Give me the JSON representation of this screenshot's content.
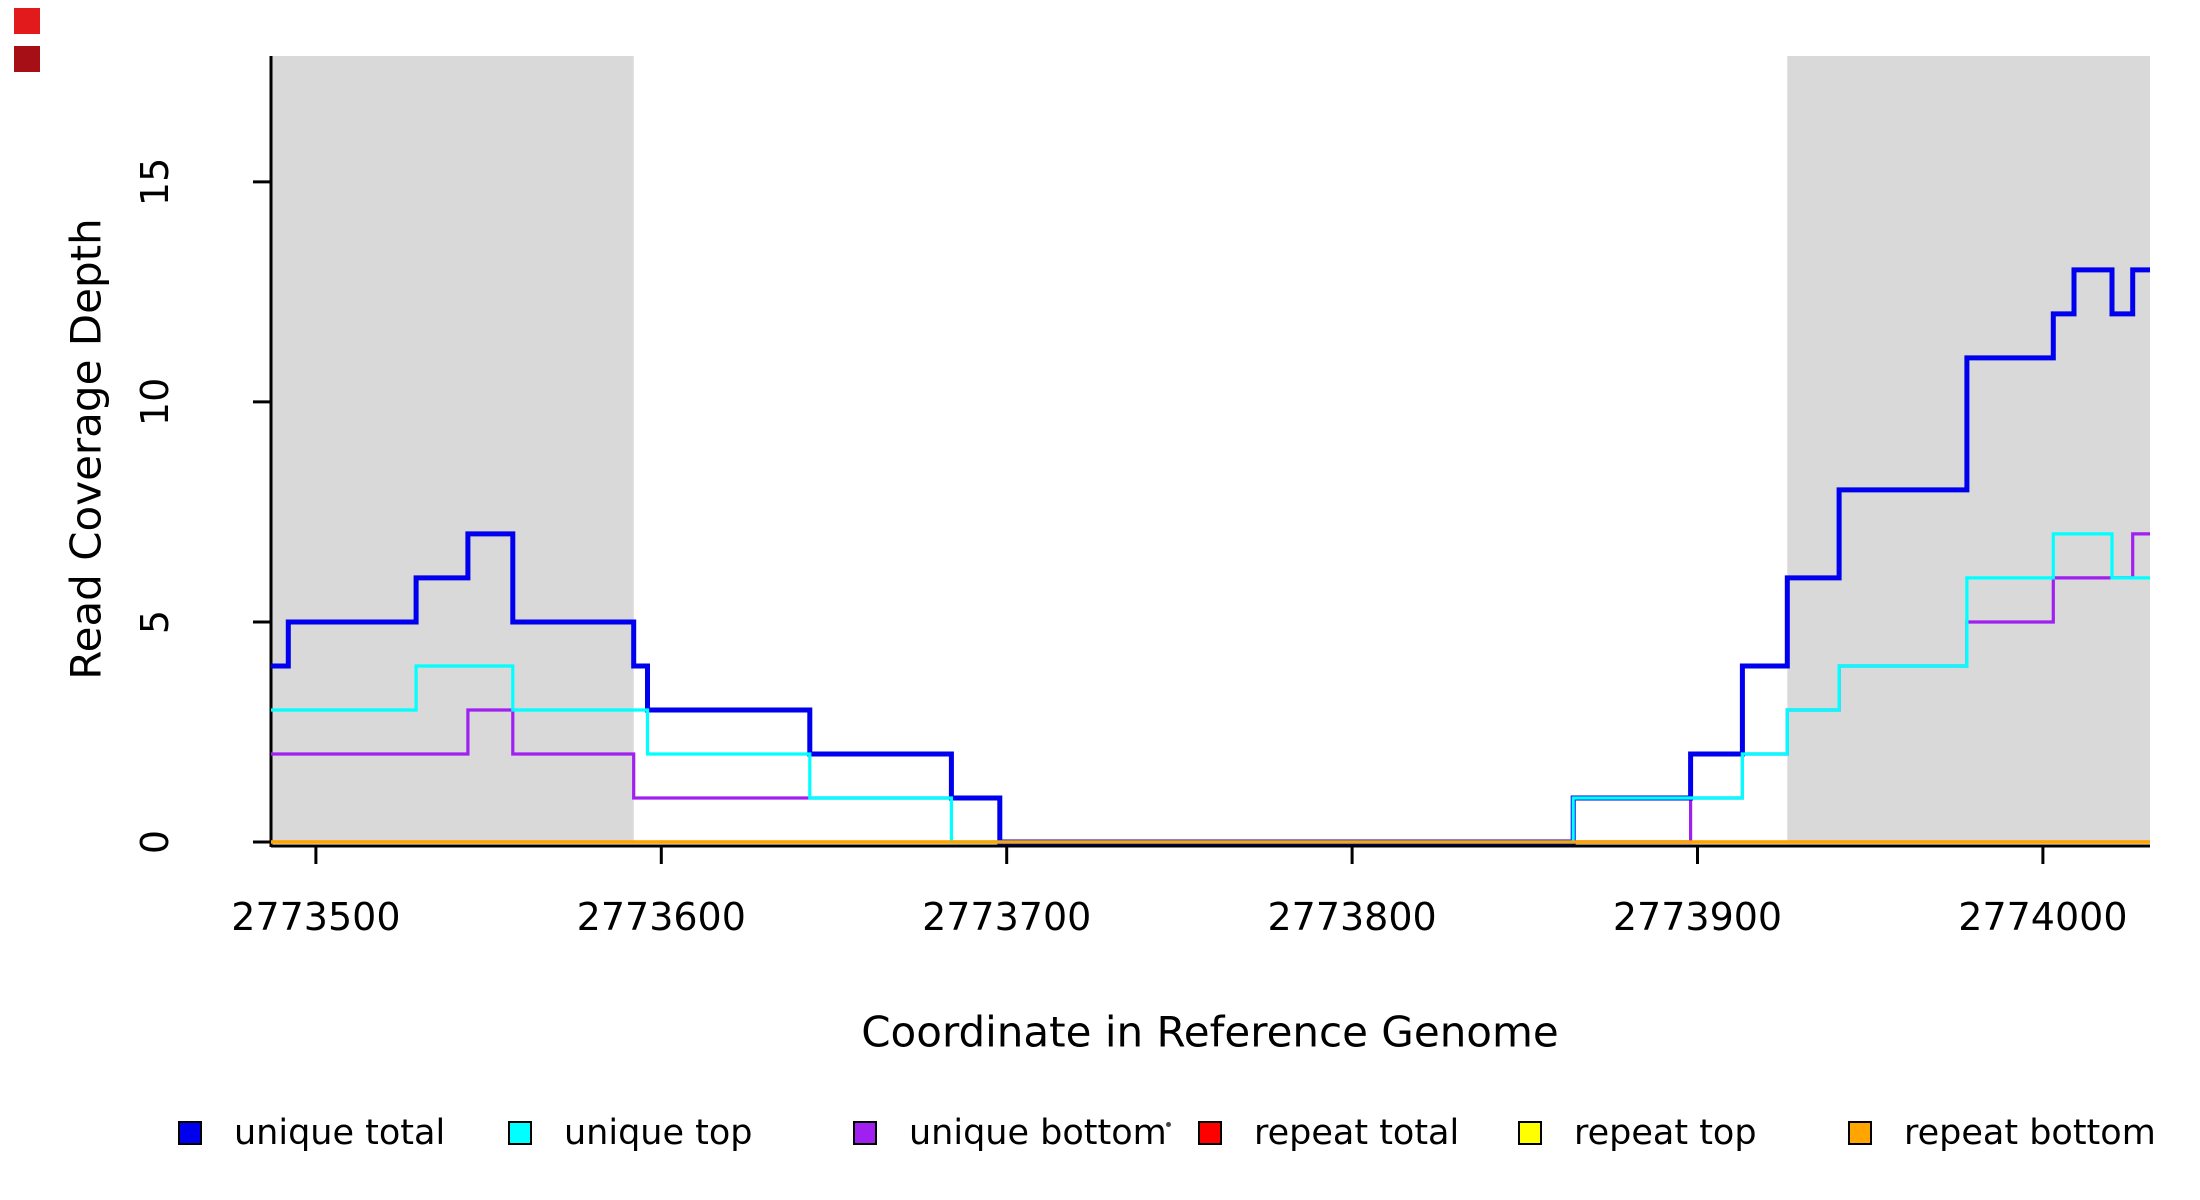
{
  "chart_data": {
    "type": "line",
    "style": "step",
    "title": "",
    "xlabel": "Coordinate in Reference Genome",
    "ylabel": "Read Coverage Depth",
    "xlim": [
      2773487,
      2774031
    ],
    "ylim": [
      0,
      17.86
    ],
    "x_ticks": [
      2773500,
      2773600,
      2773700,
      2773800,
      2773900,
      2774000
    ],
    "y_ticks": [
      0,
      5,
      10,
      15
    ],
    "grid": false,
    "legend_position": "bottom",
    "background_color": "#ffffff",
    "shaded_region_color": "#d9d9d9",
    "shaded_regions": [
      {
        "x0": 2773487,
        "x1": 2773592
      },
      {
        "x0": 2773926,
        "x1": 2774031
      }
    ],
    "draw_order": [
      3,
      4,
      2,
      0,
      1,
      5
    ],
    "series": [
      {
        "name": "unique total",
        "color": "#0000ee",
        "step_points": [
          [
            2773487,
            4
          ],
          [
            2773492,
            5
          ],
          [
            2773529,
            6
          ],
          [
            2773544,
            7
          ],
          [
            2773557,
            5
          ],
          [
            2773592,
            4
          ],
          [
            2773596,
            3
          ],
          [
            2773643,
            2
          ],
          [
            2773684,
            1
          ],
          [
            2773698,
            0
          ],
          [
            2773864,
            1
          ],
          [
            2773898,
            2
          ],
          [
            2773913,
            4
          ],
          [
            2773926,
            6
          ],
          [
            2773941,
            8
          ],
          [
            2773978,
            11
          ],
          [
            2774003,
            12
          ],
          [
            2774009,
            13
          ],
          [
            2774020,
            12
          ],
          [
            2774026,
            13
          ]
        ]
      },
      {
        "name": "unique top",
        "color": "#00ffff",
        "step_points": [
          [
            2773487,
            3
          ],
          [
            2773529,
            4
          ],
          [
            2773557,
            3
          ],
          [
            2773596,
            2
          ],
          [
            2773643,
            1
          ],
          [
            2773684,
            0
          ],
          [
            2773864,
            1
          ],
          [
            2773913,
            2
          ],
          [
            2773926,
            3
          ],
          [
            2773941,
            4
          ],
          [
            2773978,
            6
          ],
          [
            2774003,
            7
          ],
          [
            2774020,
            6
          ]
        ]
      },
      {
        "name": "unique bottom",
        "color": "#a020f0",
        "step_points": [
          [
            2773487,
            2
          ],
          [
            2773544,
            3
          ],
          [
            2773557,
            2
          ],
          [
            2773592,
            1
          ],
          [
            2773698,
            0
          ],
          [
            2773898,
            1
          ],
          [
            2773913,
            2
          ],
          [
            2773926,
            3
          ],
          [
            2773941,
            4
          ],
          [
            2773978,
            5
          ],
          [
            2774003,
            6
          ],
          [
            2774026,
            7
          ]
        ]
      },
      {
        "name": "repeat total",
        "color": "#ff0000",
        "step_points": [
          [
            2773487,
            0
          ]
        ]
      },
      {
        "name": "repeat top",
        "color": "#ffff00",
        "step_points": [
          [
            2773487,
            0
          ]
        ]
      },
      {
        "name": "repeat bottom",
        "color": "#ffa500",
        "step_points": [
          [
            2773487,
            0
          ]
        ]
      }
    ],
    "artifacts": {
      "corner_marker_colors": [
        "#e31a1c",
        "#a50f15"
      ],
      "stray_mark": "."
    }
  }
}
